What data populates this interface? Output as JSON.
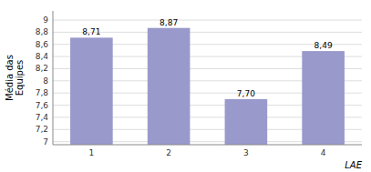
{
  "chart_data": {
    "type": "bar",
    "categories": [
      "1",
      "2",
      "3",
      "4"
    ],
    "values": [
      8.71,
      8.87,
      7.7,
      8.49
    ],
    "value_labels": [
      "8,71",
      "8,87",
      "7,70",
      "8,49"
    ],
    "data_labels": true,
    "color": "#9999cc",
    "ylabel": "Média das\nEquipes",
    "xlabel": "LAE",
    "ylim": [
      6.95,
      9.15
    ],
    "yticks": [
      7,
      {
        "value": 7.2,
        "label": "7,2"
      },
      {
        "value": 7.4,
        "label": "7,4"
      },
      {
        "value": 7.6,
        "label": "7,6"
      },
      {
        "value": 7.8,
        "label": "7,8"
      },
      8,
      {
        "value": 8.2,
        "label": "8,2"
      },
      {
        "value": 8.4,
        "label": "8,4"
      },
      {
        "value": 8.6,
        "label": "8,6"
      },
      {
        "value": 8.8,
        "label": "8,8"
      },
      9
    ],
    "grid": true
  }
}
